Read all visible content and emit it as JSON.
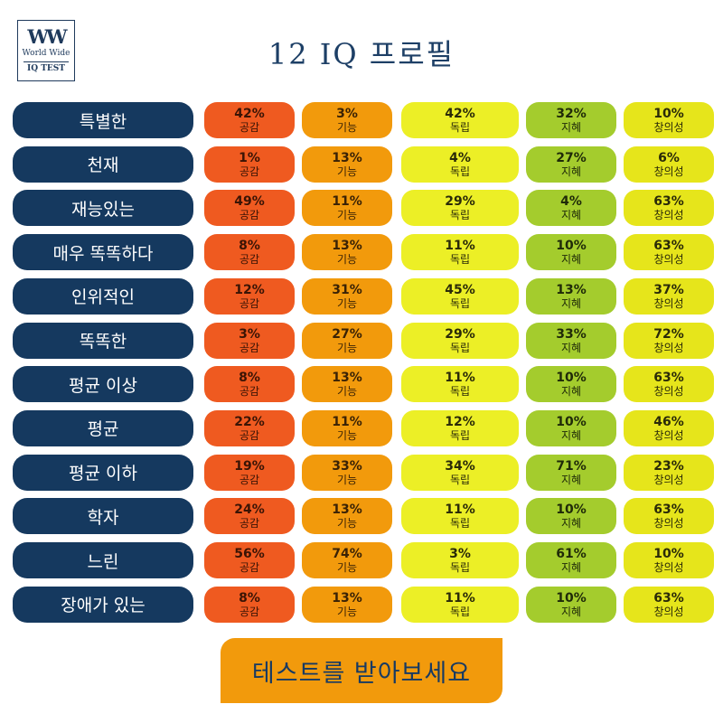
{
  "logo": {
    "mark": "WW",
    "line1": "World Wide",
    "line2": "IQ TEST"
  },
  "title": "12 IQ 프로필",
  "category_labels": [
    "공감",
    "기능",
    "독립",
    "지혜",
    "창의성"
  ],
  "colors": {
    "label_bg": "#15395f",
    "c0": "#ef5a20",
    "c1": "#f29a0c",
    "c2": "#ecef26",
    "c3": "#a4cc2d",
    "c4": "#e6e51b"
  },
  "rows": [
    {
      "label": "특별한",
      "values": [
        "42%",
        "3%",
        "42%",
        "32%",
        "10%"
      ]
    },
    {
      "label": "천재",
      "values": [
        "1%",
        "13%",
        "4%",
        "27%",
        "6%"
      ]
    },
    {
      "label": "재능있는",
      "values": [
        "49%",
        "11%",
        "29%",
        "4%",
        "63%"
      ]
    },
    {
      "label": "매우 똑똑하다",
      "values": [
        "8%",
        "13%",
        "11%",
        "10%",
        "63%"
      ]
    },
    {
      "label": "인위적인",
      "values": [
        "12%",
        "31%",
        "45%",
        "13%",
        "37%"
      ]
    },
    {
      "label": "똑똑한",
      "values": [
        "3%",
        "27%",
        "29%",
        "33%",
        "72%"
      ]
    },
    {
      "label": "평균 이상",
      "values": [
        "8%",
        "13%",
        "11%",
        "10%",
        "63%"
      ]
    },
    {
      "label": "평균",
      "values": [
        "22%",
        "11%",
        "12%",
        "10%",
        "46%"
      ]
    },
    {
      "label": "평균 이하",
      "values": [
        "19%",
        "33%",
        "34%",
        "71%",
        "23%"
      ]
    },
    {
      "label": "학자",
      "values": [
        "24%",
        "13%",
        "11%",
        "10%",
        "63%"
      ]
    },
    {
      "label": "느린",
      "values": [
        "56%",
        "74%",
        "3%",
        "61%",
        "10%"
      ]
    },
    {
      "label": "장애가 있는",
      "values": [
        "8%",
        "13%",
        "11%",
        "10%",
        "63%"
      ]
    }
  ],
  "cta": {
    "label": "테스트를 받아보세요"
  }
}
